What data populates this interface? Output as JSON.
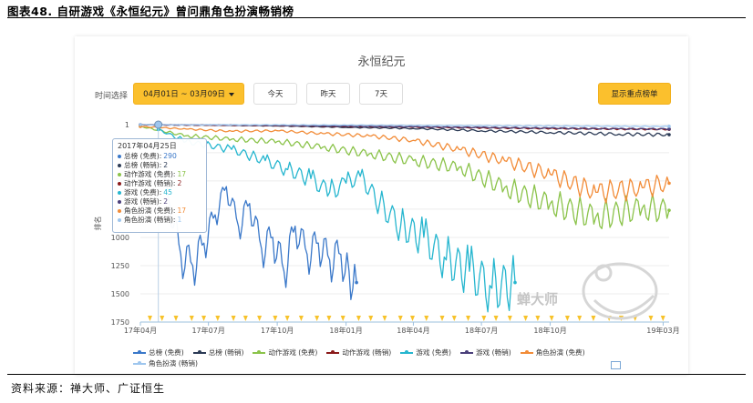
{
  "report": {
    "title": "图表48.  自研游戏《永恒纪元》曾问鼎角色扮演畅销榜",
    "source": "资料来源：禅大师、广证恒生"
  },
  "toolbar": {
    "label": "时间选择",
    "date_range": "04月01日 ~ 03月09日",
    "today": "今天",
    "yesterday": "昨天",
    "seven_days": "7天",
    "highlight": "显示重点榜单"
  },
  "watermark": "蝉大师",
  "tooltip": {
    "date": "2017年04月25日",
    "rows": [
      {
        "label": "总榜 (免费)",
        "value": "290",
        "color": "#3a78c9"
      },
      {
        "label": "总榜 (畅销)",
        "value": "2",
        "color": "#2b3a55"
      },
      {
        "label": "动作游戏 (免费)",
        "value": "17",
        "color": "#8bc34a"
      },
      {
        "label": "动作游戏 (畅销)",
        "value": "2",
        "color": "#8b1a1a"
      },
      {
        "label": "游戏 (免费)",
        "value": "45",
        "color": "#26b6cf"
      },
      {
        "label": "游戏 (畅销)",
        "value": "2",
        "color": "#4a3f7a"
      },
      {
        "label": "角色扮演 (免费)",
        "value": "17",
        "color": "#f28c38"
      },
      {
        "label": "角色扮演 (畅销)",
        "value": "1",
        "color": "#9ec6ee"
      }
    ]
  },
  "colors": {
    "accent": "#fbc02d",
    "marker": "#f7c22a"
  },
  "chart_data": {
    "type": "line",
    "title": "永恒纪元",
    "xlabel": "",
    "ylabel": "排名",
    "y_reversed": true,
    "ylim": [
      1,
      1750
    ],
    "yticks": [
      "1",
      "250",
      "500",
      "750",
      "1000",
      "1250",
      "1500",
      "1750"
    ],
    "xlim": [
      "2017-04-01",
      "2019-03-09"
    ],
    "xticks": [
      "17年04月",
      "17年07月",
      "17年10月",
      "18年01月",
      "18年04月",
      "18年07月",
      "18年10月",
      "19年03月"
    ],
    "legend_position": "bottom",
    "series": [
      {
        "name": "总榜 (免费)",
        "color": "#3a78c9",
        "x": [
          "2017-04-25",
          "2017-05-10",
          "2017-05-25",
          "2017-06-10",
          "2017-06-25",
          "2017-07-10",
          "2017-07-25",
          "2017-08-10",
          "2017-08-25",
          "2017-09-10",
          "2017-09-25",
          "2017-10-10",
          "2017-10-25",
          "2017-11-10",
          "2017-11-25",
          "2017-12-10",
          "2017-12-25",
          "2018-01-05",
          "2018-01-15"
        ],
        "values": [
          290,
          700,
          1150,
          1250,
          1050,
          800,
          550,
          900,
          700,
          1100,
          1000,
          1300,
          900,
          1150,
          1050,
          1200,
          1150,
          1300,
          1400
        ]
      },
      {
        "name": "总榜 (畅销)",
        "color": "#2b3a55",
        "x": [
          "2017-04-01",
          "2017-07-01",
          "2017-10-01",
          "2018-01-01",
          "2018-04-01",
          "2018-07-01",
          "2018-10-01",
          "2019-01-01",
          "2019-03-09"
        ],
        "values": [
          2,
          5,
          12,
          25,
          35,
          55,
          70,
          85,
          90
        ]
      },
      {
        "name": "动作游戏 (免费)",
        "color": "#8bc34a",
        "x": [
          "2017-04-01",
          "2017-06-01",
          "2017-08-01",
          "2017-10-01",
          "2017-12-01",
          "2018-02-01",
          "2018-04-01",
          "2018-06-01",
          "2018-08-01",
          "2018-10-01",
          "2018-12-01",
          "2019-02-01",
          "2019-03-09"
        ],
        "values": [
          17,
          100,
          130,
          150,
          200,
          260,
          320,
          380,
          560,
          700,
          820,
          740,
          760
        ]
      },
      {
        "name": "动作游戏 (畅销)",
        "color": "#8b1a1a",
        "x": [
          "2017-04-01",
          "2017-07-01",
          "2017-10-01",
          "2018-01-01",
          "2018-04-01",
          "2018-07-01",
          "2018-10-01",
          "2019-01-01",
          "2019-03-09"
        ],
        "values": [
          2,
          6,
          10,
          18,
          22,
          30,
          35,
          40,
          42
        ]
      },
      {
        "name": "游戏 (免费)",
        "color": "#26b6cf",
        "x": [
          "2017-04-25",
          "2017-06-01",
          "2017-08-01",
          "2017-09-15",
          "2017-10-15",
          "2017-11-15",
          "2017-12-10",
          "2018-01-01",
          "2018-01-20",
          "2018-02-15",
          "2018-03-15",
          "2018-04-15",
          "2018-05-15",
          "2018-06-15",
          "2018-07-15",
          "2018-08-15"
        ],
        "values": [
          45,
          150,
          220,
          320,
          400,
          480,
          600,
          520,
          460,
          700,
          900,
          1000,
          1200,
          1300,
          1450,
          1400
        ]
      },
      {
        "name": "游戏 (畅销)",
        "color": "#4a3f7a",
        "x": [
          "2017-04-01",
          "2017-07-01",
          "2017-10-01",
          "2018-01-01",
          "2018-04-01",
          "2018-07-01",
          "2018-10-01",
          "2019-01-01",
          "2019-03-09"
        ],
        "values": [
          2,
          4,
          8,
          15,
          20,
          26,
          32,
          38,
          40
        ]
      },
      {
        "name": "角色扮演 (免费)",
        "color": "#f28c38",
        "x": [
          "2017-04-01",
          "2017-06-01",
          "2017-08-01",
          "2017-10-01",
          "2017-12-01",
          "2018-02-01",
          "2018-04-01",
          "2018-06-01",
          "2018-08-01",
          "2018-10-01",
          "2018-12-01",
          "2019-02-01",
          "2019-03-09"
        ],
        "values": [
          17,
          40,
          60,
          55,
          80,
          100,
          140,
          220,
          320,
          440,
          600,
          560,
          520
        ]
      },
      {
        "name": "角色扮演 (畅销)",
        "color": "#9ec6ee",
        "x": [
          "2017-04-01",
          "2017-07-01",
          "2017-10-01",
          "2018-01-01",
          "2018-04-01",
          "2018-07-01",
          "2018-10-01",
          "2019-01-01",
          "2019-03-09"
        ],
        "values": [
          1,
          2,
          3,
          5,
          8,
          10,
          12,
          15,
          16
        ]
      }
    ]
  }
}
